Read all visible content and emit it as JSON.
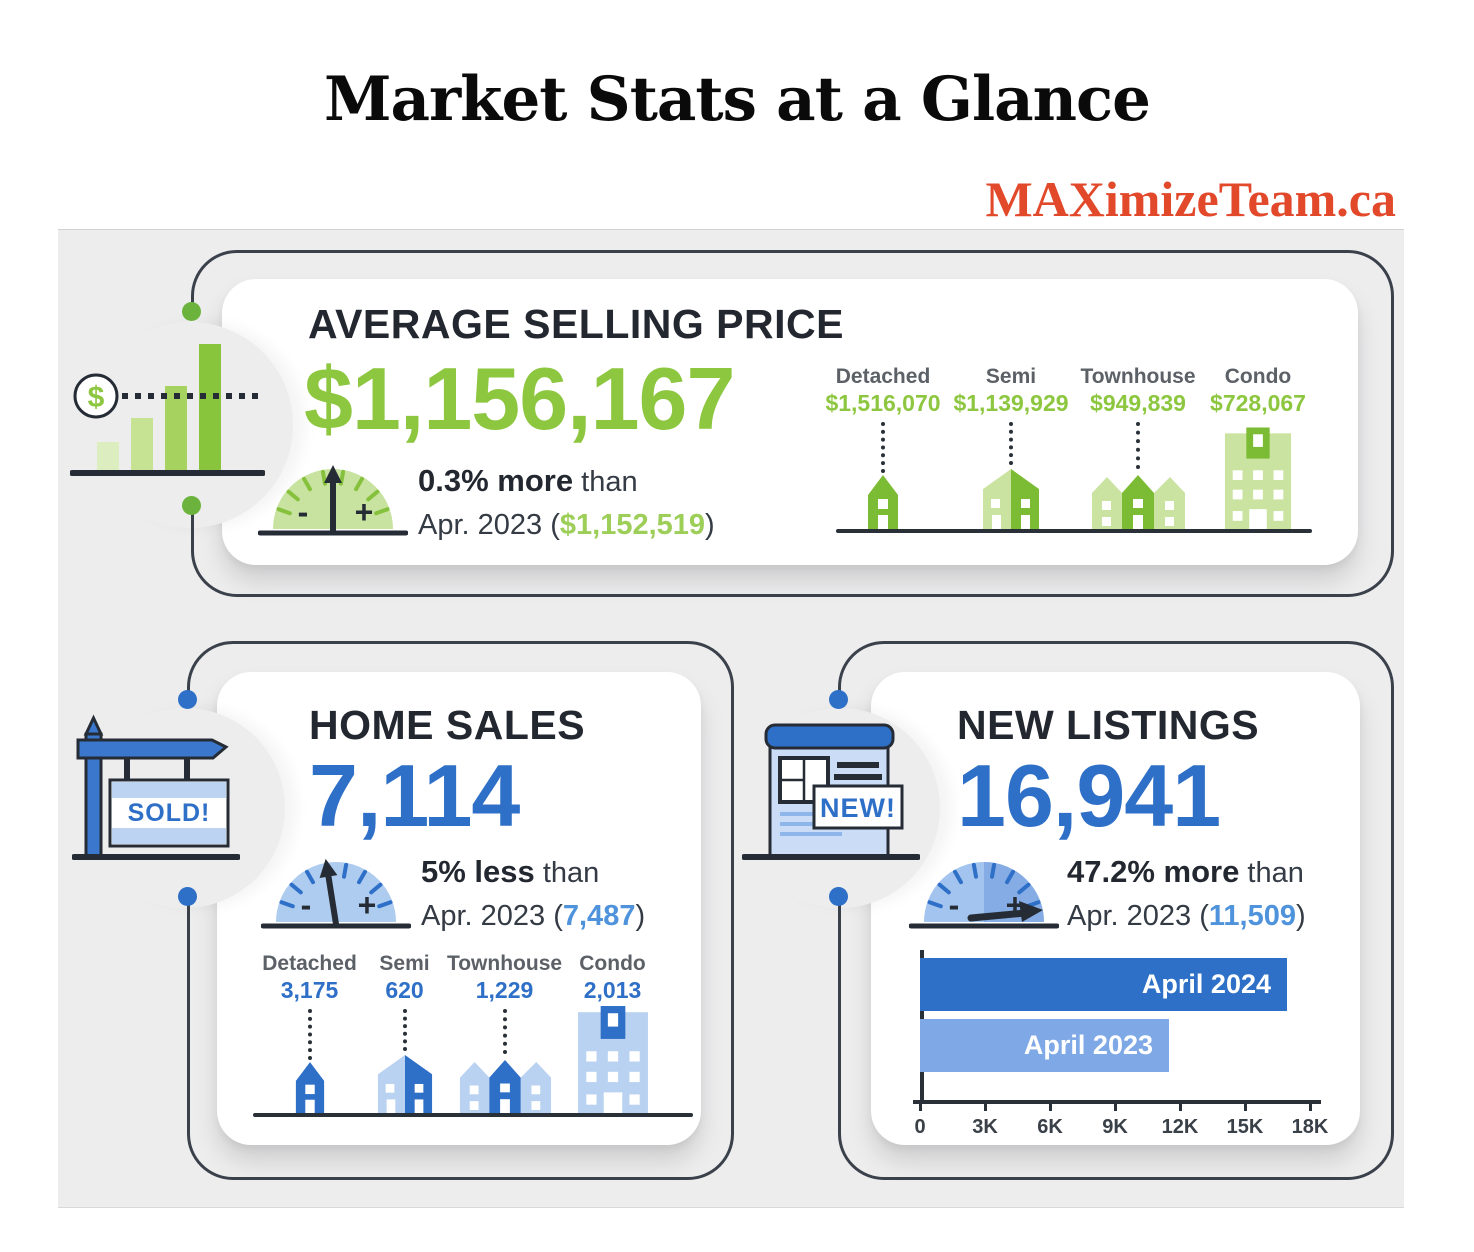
{
  "header": {
    "title": "Market Stats at a Glance",
    "brand": "MAXimizeTeam.ca"
  },
  "cards": {
    "avg_price": {
      "title": "AVERAGE SELLING PRICE",
      "value": "$1,156,167",
      "change": "0.3% more",
      "change_rest": "than",
      "compare_prefix": "Apr. 2023 (",
      "compare_value": "$1,152,519",
      "compare_suffix": ")",
      "breakdown": [
        {
          "label": "Detached",
          "value": "$1,516,070"
        },
        {
          "label": "Semi",
          "value": "$1,139,929"
        },
        {
          "label": "Townhouse",
          "value": "$949,839"
        },
        {
          "label": "Condo",
          "value": "$728,067"
        }
      ]
    },
    "home_sales": {
      "title": "HOME SALES",
      "value": "7,114",
      "change": "5% less",
      "change_rest": "than",
      "compare_prefix": "Apr. 2023 (",
      "compare_value": "7,487",
      "compare_suffix": ")",
      "breakdown": [
        {
          "label": "Detached",
          "value": "3,175"
        },
        {
          "label": "Semi",
          "value": "620"
        },
        {
          "label": "Townhouse",
          "value": "1,229"
        },
        {
          "label": "Condo",
          "value": "2,013"
        }
      ]
    },
    "new_listings": {
      "title": "NEW LISTINGS",
      "value": "16,941",
      "change": "47.2% more",
      "change_rest": "than",
      "compare_prefix": "Apr. 2023 (",
      "compare_value": "11,509",
      "compare_suffix": ")"
    }
  },
  "chart_data": {
    "type": "bar",
    "orientation": "horizontal",
    "categories": [
      "April 2024",
      "April 2023"
    ],
    "values": [
      16941,
      11509
    ],
    "x_axis_ticks": [
      "0",
      "3K",
      "6K",
      "9K",
      "12K",
      "15K",
      "18K"
    ],
    "xlim": [
      0,
      18000
    ],
    "series_colors": [
      "#2E6FC7",
      "#7FA9E6"
    ],
    "grid": false,
    "legend": "labels-inside-bars"
  },
  "icons": {
    "dollar_sign": "$",
    "sold_label": "SOLD!",
    "new_label": "NEW!",
    "gauge_minus": "-",
    "gauge_plus": "+"
  },
  "colors": {
    "green": "#8DC63F",
    "green_light": "#CBE3A1",
    "blue": "#2E6FC7",
    "blue_light": "#B9D2F1",
    "brand_red": "#E2492B",
    "panel_gray": "#EDEDEE",
    "outline_dark": "#3A414B"
  }
}
